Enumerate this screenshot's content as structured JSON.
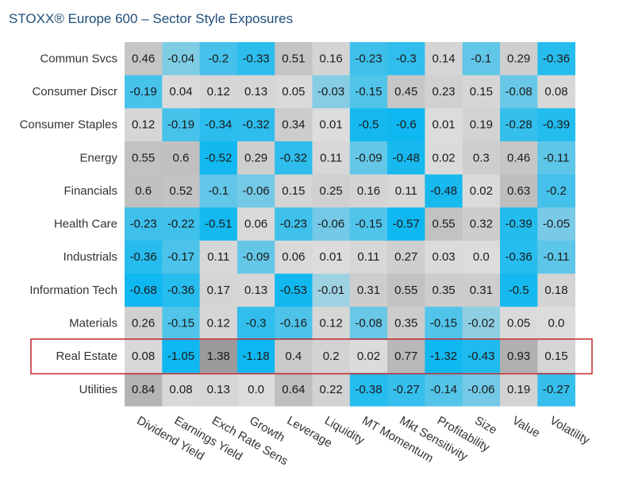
{
  "chart_data": {
    "type": "heatmap",
    "title": "STOXX® Europe 600 – Sector Style Exposures",
    "rows": [
      "Commun Svcs",
      "Consumer Discr",
      "Consumer Staples",
      "Energy",
      "Financials",
      "Health Care",
      "Industrials",
      "Information Tech",
      "Materials",
      "Real Estate",
      "Utilities"
    ],
    "columns": [
      "Dividend Yield",
      "Earnings Yield",
      "Exch Rate Sens",
      "Growth",
      "Leverage",
      "Liquidity",
      "MT Momentum",
      "Mkt Sensitivity",
      "Profitability",
      "Size",
      "Value",
      "Volatility"
    ],
    "values": [
      [
        "0.46",
        "-0.04",
        "-0.2",
        "-0.33",
        "0.51",
        "0.16",
        "-0.23",
        "-0.3",
        "0.14",
        "-0.1",
        "0.29",
        "-0.36"
      ],
      [
        "-0.19",
        "0.04",
        "0.12",
        "0.13",
        "0.05",
        "-0.03",
        "-0.15",
        "0.45",
        "0.23",
        "0.15",
        "-0.08",
        "0.08"
      ],
      [
        "0.12",
        "-0.19",
        "-0.34",
        "-0.32",
        "0.34",
        "0.01",
        "-0.5",
        "-0.6",
        "0.01",
        "0.19",
        "-0.28",
        "-0.39"
      ],
      [
        "0.55",
        "0.6",
        "-0.52",
        "0.29",
        "-0.32",
        "0.11",
        "-0.09",
        "-0.48",
        "0.02",
        "0.3",
        "0.46",
        "-0.11"
      ],
      [
        "0.6",
        "0.52",
        "-0.1",
        "-0.06",
        "0.15",
        "0.25",
        "0.16",
        "0.11",
        "-0.48",
        "0.02",
        "0.63",
        "-0.2"
      ],
      [
        "-0.23",
        "-0.22",
        "-0.51",
        "0.06",
        "-0.23",
        "-0.06",
        "-0.15",
        "-0.57",
        "0.55",
        "0.32",
        "-0.39",
        "-0.05"
      ],
      [
        "-0.36",
        "-0.17",
        "0.11",
        "-0.09",
        "0.06",
        "0.01",
        "0.11",
        "0.27",
        "0.03",
        "0.0",
        "-0.36",
        "-0.11"
      ],
      [
        "-0.68",
        "-0.36",
        "0.17",
        "0.13",
        "-0.53",
        "-0.01",
        "0.31",
        "0.55",
        "0.35",
        "0.31",
        "-0.5",
        "0.18"
      ],
      [
        "0.26",
        "-0.15",
        "0.12",
        "-0.3",
        "-0.16",
        "0.12",
        "-0.08",
        "0.35",
        "-0.15",
        "-0.02",
        "0.05",
        "0.0"
      ],
      [
        "0.08",
        "-1.05",
        "1.38",
        "-1.18",
        "0.4",
        "0.2",
        "0.02",
        "0.77",
        "-1.32",
        "-0.43",
        "0.93",
        "0.15"
      ],
      [
        "0.84",
        "0.08",
        "0.13",
        "0.0",
        "0.64",
        "0.22",
        "-0.38",
        "-0.27",
        "-0.14",
        "-0.06",
        "0.19",
        "-0.27"
      ]
    ],
    "highlighted_row": "Real Estate",
    "highlight_color": "#c0272d",
    "colors": {
      "negative": "#0fb8f0",
      "neutral": "#dcdcdc",
      "positive": "#9a9a9a"
    }
  }
}
